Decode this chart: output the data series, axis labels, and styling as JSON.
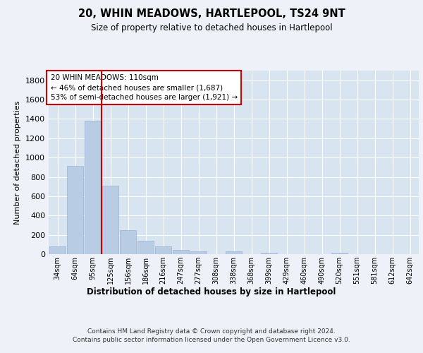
{
  "title": "20, WHIN MEADOWS, HARTLEPOOL, TS24 9NT",
  "subtitle": "Size of property relative to detached houses in Hartlepool",
  "xlabel": "Distribution of detached houses by size in Hartlepool",
  "ylabel": "Number of detached properties",
  "categories": [
    "34sqm",
    "64sqm",
    "95sqm",
    "125sqm",
    "156sqm",
    "186sqm",
    "216sqm",
    "247sqm",
    "277sqm",
    "308sqm",
    "338sqm",
    "368sqm",
    "399sqm",
    "429sqm",
    "460sqm",
    "490sqm",
    "520sqm",
    "551sqm",
    "581sqm",
    "612sqm",
    "642sqm"
  ],
  "values": [
    80,
    910,
    1380,
    710,
    245,
    140,
    80,
    45,
    28,
    0,
    28,
    0,
    18,
    0,
    0,
    0,
    15,
    0,
    0,
    0,
    0
  ],
  "bar_color": "#b8cce4",
  "bar_edge_color": "#9ab3d4",
  "vline_x_index": 2.5,
  "vline_color": "#cc0000",
  "annotation_text": "20 WHIN MEADOWS: 110sqm\n← 46% of detached houses are smaller (1,687)\n53% of semi-detached houses are larger (1,921) →",
  "annotation_box_color": "white",
  "annotation_box_edge": "#cc0000",
  "ylim": [
    0,
    1900
  ],
  "yticks": [
    0,
    200,
    400,
    600,
    800,
    1000,
    1200,
    1400,
    1600,
    1800
  ],
  "footer": "Contains HM Land Registry data © Crown copyright and database right 2024.\nContains public sector information licensed under the Open Government Licence v3.0.",
  "bg_color": "#eef2f8",
  "plot_bg_color": "#d8e4f0",
  "grid_color": "white"
}
